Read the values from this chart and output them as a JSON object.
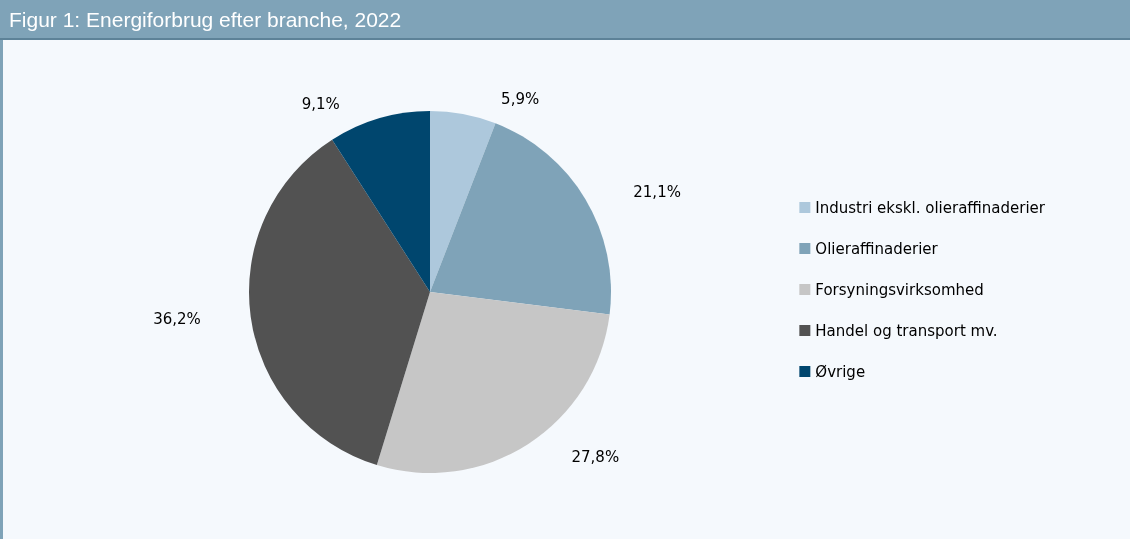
{
  "chart_data": {
    "type": "pie",
    "title": "Figur 1: Energiforbrug efter branche, 2022",
    "categories": [
      "Industri ekskl. olieraffinaderier",
      "Olieraffinaderier",
      "Forsyningsvirksomhed",
      "Handel og transport mv.",
      "Øvrige"
    ],
    "values": [
      5.9,
      21.1,
      27.8,
      36.2,
      9.1
    ],
    "colors": [
      "#adc8dc",
      "#7fa3b8",
      "#c6c6c6",
      "#525252",
      "#00466e"
    ],
    "value_labels": [
      "5,9%",
      "21,1%",
      "27,8%",
      "36,2%",
      "9,1%"
    ],
    "legend": "right"
  }
}
